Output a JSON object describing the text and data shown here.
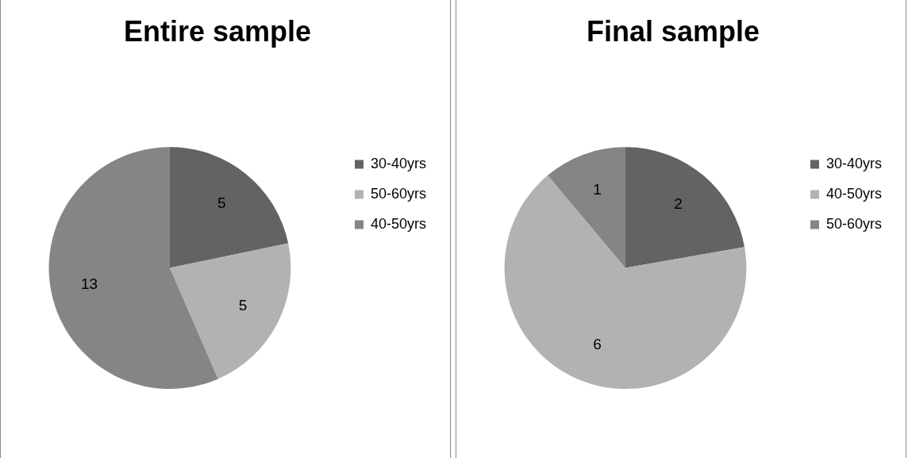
{
  "chart_data": [
    {
      "type": "pie",
      "title": "Entire sample",
      "categories": [
        "30-40yrs",
        "50-60yrs",
        "40-50yrs"
      ],
      "values": [
        5,
        5,
        13
      ],
      "colors": [
        "#636363",
        "#b2b2b2",
        "#858585"
      ],
      "data_labels": true,
      "legend": "right"
    },
    {
      "type": "pie",
      "title": "Final sample",
      "categories": [
        "30-40yrs",
        "40-50yrs",
        "50-60yrs"
      ],
      "values": [
        2,
        6,
        1
      ],
      "colors": [
        "#636363",
        "#b2b2b2",
        "#858585"
      ],
      "data_labels": true,
      "legend": "right"
    }
  ]
}
